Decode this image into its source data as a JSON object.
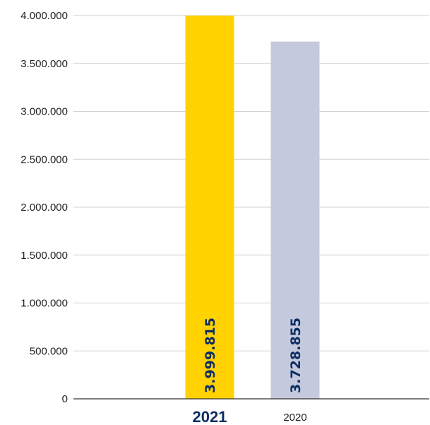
{
  "chart_data": {
    "type": "bar",
    "categories": [
      "2021",
      "2020"
    ],
    "values": [
      3999815,
      3728855
    ],
    "value_labels": [
      "3.999.815",
      "3.728.855"
    ],
    "bar_colors": [
      "#FFD200",
      "#C5C9DD"
    ],
    "highlight_category": "2021",
    "ylim": [
      0,
      4000000
    ],
    "yticks": [
      0,
      500000,
      1000000,
      1500000,
      2000000,
      2500000,
      3000000,
      3500000,
      4000000
    ],
    "ytick_labels": [
      "0",
      "500.000",
      "1.000.000",
      "1.500.000",
      "2.000.000",
      "2.500.000",
      "3.000.000",
      "3.500.000",
      "4.000.000"
    ],
    "grid": true,
    "title": "",
    "xlabel": "",
    "ylabel": ""
  }
}
